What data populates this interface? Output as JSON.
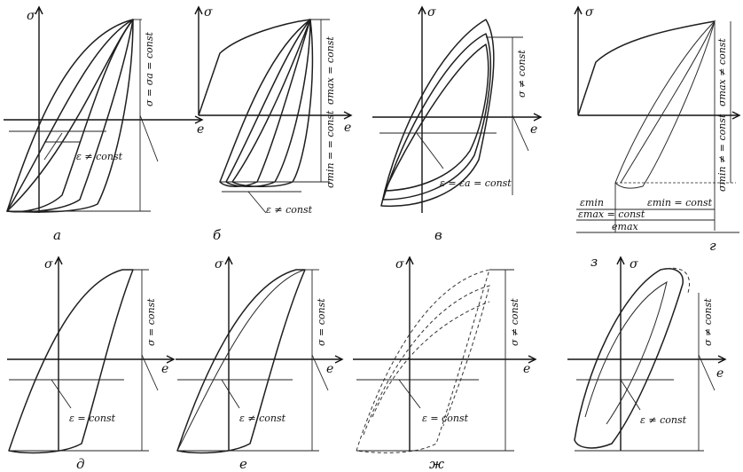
{
  "panels": [
    {
      "caption": "а",
      "y_axis": "σ",
      "x_axis": "e",
      "labels": [
        "σ = σa = const",
        "ε ≠ const"
      ]
    },
    {
      "caption": "б",
      "y_axis": "σ",
      "x_axis": "e",
      "labels": [
        "σmax = const",
        "σmin = = const",
        "ε ≠ const"
      ]
    },
    {
      "caption": "в",
      "y_axis": "σ",
      "x_axis": "e",
      "labels": [
        "σ ≠ const",
        "ε = εa = const"
      ]
    },
    {
      "caption": "г",
      "y_axis": "σ",
      "x_axis": "e",
      "labels": [
        "σmax ≠ const",
        "σmin ≠ = const",
        "εmin",
        "εmin = const",
        "εmax = const",
        "emax"
      ]
    },
    {
      "caption": "д",
      "y_axis": "σ",
      "x_axis": "e",
      "labels": [
        "σ = const",
        "ε = const"
      ]
    },
    {
      "caption": "е",
      "y_axis": "σ",
      "x_axis": "e",
      "labels": [
        "σ = const",
        "ε ≠ const"
      ]
    },
    {
      "caption": "ж",
      "y_axis": "σ",
      "x_axis": "e",
      "labels": [
        "σ ≠ const",
        "ε = const"
      ]
    },
    {
      "caption": "з",
      "y_axis": "σ",
      "x_axis": "e",
      "labels": [
        "σ ≠ const",
        "ε ≠ const"
      ]
    }
  ]
}
